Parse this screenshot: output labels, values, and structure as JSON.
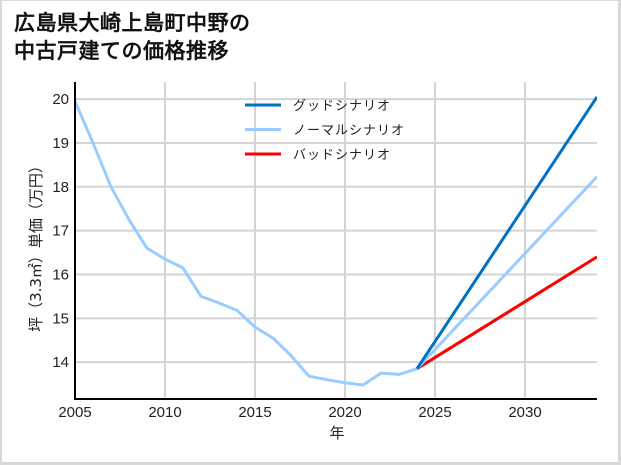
{
  "title": {
    "line1": "広島県大崎上島町中野の",
    "line2": "中古戸建ての価格推移"
  },
  "axes": {
    "xlabel": "年",
    "ylabel": "坪（3.3㎡）単価（万円）",
    "xticks": [
      "2005",
      "2010",
      "2015",
      "2020",
      "2025",
      "2030"
    ],
    "yticks": [
      "14",
      "15",
      "16",
      "17",
      "18",
      "19",
      "20"
    ]
  },
  "legend": {
    "items": [
      {
        "label": "グッドシナリオ",
        "color": "#0072c6"
      },
      {
        "label": "ノーマルシナリオ",
        "color": "#99ccff"
      },
      {
        "label": "バッドシナリオ",
        "color": "#ff0000"
      }
    ]
  },
  "colors": {
    "good": "#0072c6",
    "normal": "#99ccff",
    "bad": "#ff0000",
    "grid": "#d3d3d3",
    "axis": "#000000"
  },
  "chart_data": {
    "type": "line",
    "title": "広島県大崎上島町中野の中古戸建ての価格推移",
    "xlabel": "年",
    "ylabel": "坪（3.3㎡）単価（万円）",
    "xlim": [
      2005,
      2034
    ],
    "ylim": [
      13.16,
      20.39
    ],
    "grid": true,
    "legend_position": "upper center",
    "series": [
      {
        "name": "ノーマルシナリオ (実績)",
        "color": "#99ccff",
        "x": [
          2005,
          2006,
          2007,
          2008,
          2009,
          2010,
          2011,
          2012,
          2013,
          2014,
          2015,
          2016,
          2017,
          2018,
          2019,
          2020,
          2021,
          2022,
          2023,
          2024
        ],
        "values": [
          19.95,
          19.0,
          18.0,
          17.25,
          16.6,
          16.35,
          16.15,
          15.5,
          15.35,
          15.18,
          14.8,
          14.55,
          14.15,
          13.68,
          13.6,
          13.53,
          13.48,
          13.75,
          13.72,
          13.85
        ]
      },
      {
        "name": "グッドシナリオ",
        "color": "#0072c6",
        "x": [
          2024,
          2034
        ],
        "values": [
          13.85,
          20.05
        ]
      },
      {
        "name": "ノーマルシナリオ",
        "color": "#99ccff",
        "x": [
          2024,
          2034
        ],
        "values": [
          13.85,
          18.23
        ]
      },
      {
        "name": "バッドシナリオ",
        "color": "#ff0000",
        "x": [
          2024,
          2034
        ],
        "values": [
          13.85,
          16.4
        ]
      }
    ]
  }
}
